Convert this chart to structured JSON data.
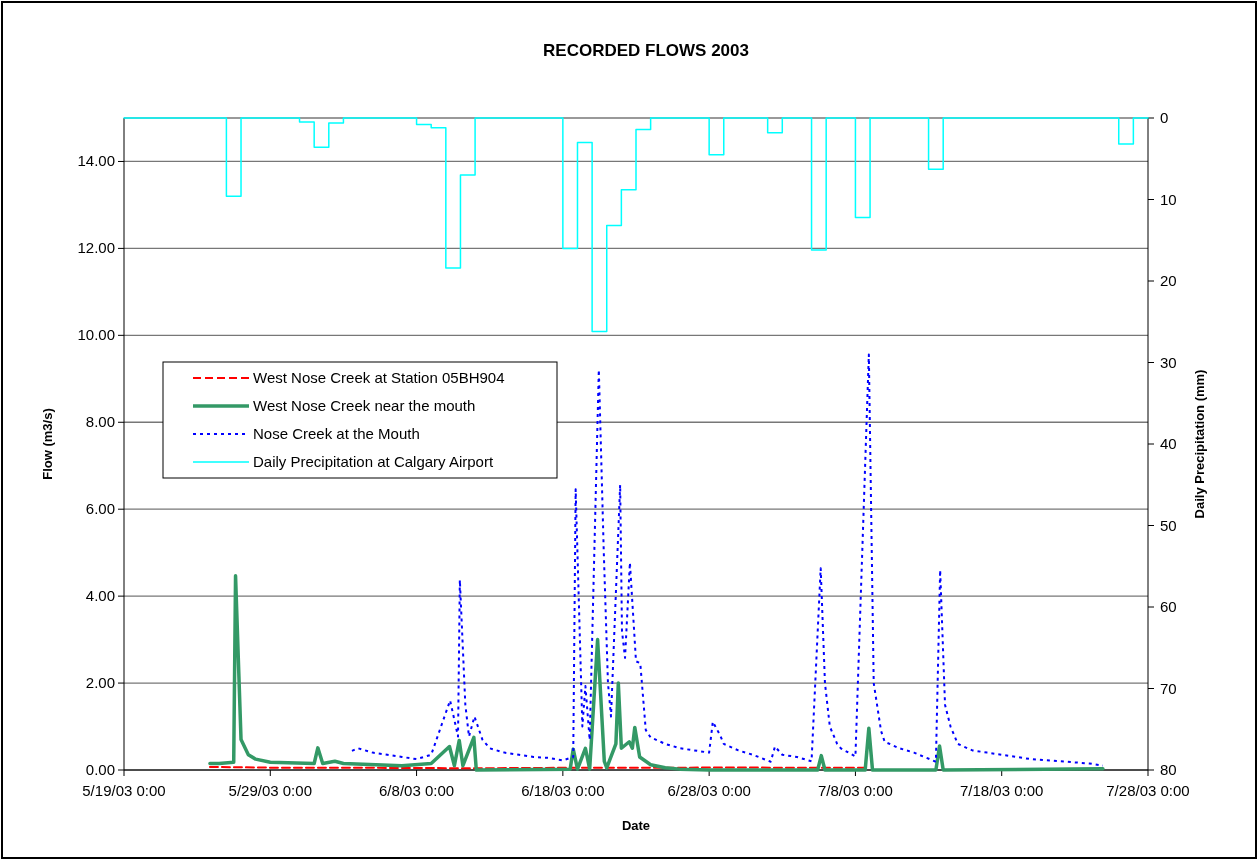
{
  "chart_data": {
    "type": "line",
    "title": "RECORDED FLOWS 2003",
    "xlabel": "Date",
    "ylabel": "Flow (m3/s)",
    "y2label": "Daily Precipitation (mm)",
    "xlim": [
      "2003-05-19",
      "2003-07-28"
    ],
    "xticks": [
      {
        "value": "2003-05-19",
        "label": "5/19/03 0:00"
      },
      {
        "value": "2003-05-29",
        "label": "5/29/03 0:00"
      },
      {
        "value": "2003-06-08",
        "label": "6/8/03 0:00"
      },
      {
        "value": "2003-06-18",
        "label": "6/18/03 0:00"
      },
      {
        "value": "2003-06-28",
        "label": "6/28/03 0:00"
      },
      {
        "value": "2003-07-08",
        "label": "7/8/03 0:00"
      },
      {
        "value": "2003-07-18",
        "label": "7/18/03 0:00"
      },
      {
        "value": "2003-07-28",
        "label": "7/28/03 0:00"
      }
    ],
    "ylim": [
      0,
      15
    ],
    "yticks": [
      {
        "value": 0,
        "label": "0.00"
      },
      {
        "value": 2,
        "label": "2.00"
      },
      {
        "value": 4,
        "label": "4.00"
      },
      {
        "value": 6,
        "label": "6.00"
      },
      {
        "value": 8,
        "label": "8.00"
      },
      {
        "value": 10,
        "label": "10.00"
      },
      {
        "value": 12,
        "label": "12.00"
      },
      {
        "value": 14,
        "label": "14.00"
      }
    ],
    "y2lim": [
      80,
      0
    ],
    "y2ticks": [
      0,
      10,
      20,
      30,
      40,
      50,
      60,
      70,
      80
    ],
    "grid": "y",
    "legend": "left",
    "marker": "none",
    "series": [
      {
        "name": "West Nose Creek at Station 05BH904",
        "color": "#ff0000",
        "line_style": "dashed",
        "x": [
          "2003-05-24T21:00",
          "2003-05-30",
          "2003-06-05",
          "2003-06-12",
          "2003-06-18",
          "2003-06-24",
          "2003-06-30",
          "2003-07-04",
          "2003-07-08T15:00"
        ],
        "values": [
          0.07,
          0.05,
          0.05,
          0.04,
          0.05,
          0.05,
          0.06,
          0.05,
          0.05
        ]
      },
      {
        "name": "West Nose Creek near the mouth",
        "color": "#339966",
        "line_style": "solid",
        "x": [
          "2003-05-24T21:00",
          "2003-05-25T12:00",
          "2003-05-26T12:00",
          "2003-05-26T15:00",
          "2003-05-27",
          "2003-05-27T12:00",
          "2003-05-28",
          "2003-05-29",
          "2003-06-01",
          "2003-06-01T06:00",
          "2003-06-01T14:00",
          "2003-06-02T10:00",
          "2003-06-03",
          "2003-06-07",
          "2003-06-09",
          "2003-06-10T06:00",
          "2003-06-10T14:00",
          "2003-06-10T22:00",
          "2003-06-11T04:00",
          "2003-06-11T22:00",
          "2003-06-12T02:00",
          "2003-06-18T12:00",
          "2003-06-18T17:00",
          "2003-06-19",
          "2003-06-19T13:00",
          "2003-06-19T20:00",
          "2003-06-20T09:00",
          "2003-06-20T20:00",
          "2003-06-21",
          "2003-06-21T15:00",
          "2003-06-21T19:00",
          "2003-06-22",
          "2003-06-22T13:00",
          "2003-06-22T18:00",
          "2003-06-22T22:00",
          "2003-06-23T06:00",
          "2003-06-24",
          "2003-06-25",
          "2003-06-26",
          "2003-06-28",
          "2003-07-05T10:00",
          "2003-07-05T16:00",
          "2003-07-05T22:00",
          "2003-07-08T16:00",
          "2003-07-08T22:00",
          "2003-07-09T04:00",
          "2003-07-13T12:00",
          "2003-07-13T18:00",
          "2003-07-14",
          "2003-07-24T22:00"
        ],
        "values": [
          0.15,
          0.15,
          0.18,
          4.47,
          0.7,
          0.35,
          0.25,
          0.18,
          0.15,
          0.51,
          0.15,
          0.2,
          0.15,
          0.1,
          0.15,
          0.54,
          0.1,
          0.68,
          0.1,
          0.75,
          0.0,
          0.02,
          0.48,
          0.02,
          0.5,
          0.02,
          3.0,
          0.2,
          0.05,
          0.6,
          2.0,
          0.5,
          0.65,
          0.5,
          0.98,
          0.3,
          0.12,
          0.05,
          0.02,
          0.0,
          0.0,
          0.33,
          0.0,
          0.0,
          0.96,
          0.0,
          0.0,
          0.55,
          0.0,
          0.03
        ]
      },
      {
        "name": "Nose Creek at the Mouth",
        "color": "#0000ff",
        "line_style": "dotted",
        "x": [
          "2003-06-03T14:00",
          "2003-06-04",
          "2003-06-05",
          "2003-06-06",
          "2003-06-07",
          "2003-06-08",
          "2003-06-09",
          "2003-06-10T07:00",
          "2003-06-10T20:00",
          "2003-06-10T23:00",
          "2003-06-11T08:00",
          "2003-06-11T14:00",
          "2003-06-11T23:00",
          "2003-06-12T12:00",
          "2003-06-13",
          "2003-06-14",
          "2003-06-15",
          "2003-06-16",
          "2003-06-17",
          "2003-06-18",
          "2003-06-18T17:00",
          "2003-06-18T21:00",
          "2003-06-19T08:00",
          "2003-06-19T13:00",
          "2003-06-19T20:00",
          "2003-06-20T11:00",
          "2003-06-20T19:00",
          "2003-06-21T02:00",
          "2003-06-21T07:00",
          "2003-06-21T22:00",
          "2003-06-22T01:00",
          "2003-06-22T06:00",
          "2003-06-22T14:00",
          "2003-06-23",
          "2003-06-23T07:00",
          "2003-06-23T16:00",
          "2003-06-24",
          "2003-06-25",
          "2003-06-26",
          "2003-06-27",
          "2003-06-28",
          "2003-06-28T06:00",
          "2003-06-28T18:00",
          "2003-06-29",
          "2003-06-30",
          "2003-07-01",
          "2003-07-02T05:00",
          "2003-07-02T12:00",
          "2003-07-03",
          "2003-07-04",
          "2003-07-05",
          "2003-07-05T15:00",
          "2003-07-05T22:00",
          "2003-07-06T06:00",
          "2003-07-06T18:00",
          "2003-07-07",
          "2003-07-08",
          "2003-07-08T22:00",
          "2003-07-09T06:00",
          "2003-07-09T18:00",
          "2003-07-10",
          "2003-07-11",
          "2003-07-12",
          "2003-07-13T12:00",
          "2003-07-13T19:00",
          "2003-07-14T03:00",
          "2003-07-14T12:00",
          "2003-07-15",
          "2003-07-16",
          "2003-07-17",
          "2003-07-18",
          "2003-07-19",
          "2003-07-20",
          "2003-07-22",
          "2003-07-24",
          "2003-07-24T22:00"
        ],
        "values": [
          0.44,
          0.5,
          0.4,
          0.35,
          0.3,
          0.25,
          0.35,
          1.6,
          0.77,
          4.37,
          1.5,
          0.77,
          1.23,
          0.7,
          0.5,
          0.4,
          0.35,
          0.3,
          0.28,
          0.22,
          0.3,
          6.46,
          1.0,
          1.93,
          0.69,
          9.21,
          5.07,
          2.0,
          1.23,
          6.56,
          3.2,
          2.58,
          4.77,
          2.5,
          2.46,
          0.92,
          0.75,
          0.6,
          0.5,
          0.45,
          0.4,
          1.11,
          0.8,
          0.6,
          0.45,
          0.35,
          0.19,
          0.54,
          0.35,
          0.3,
          0.2,
          4.64,
          2.0,
          1.0,
          0.6,
          0.5,
          0.31,
          9.56,
          2.0,
          0.9,
          0.65,
          0.5,
          0.4,
          0.19,
          4.6,
          1.5,
          1.0,
          0.6,
          0.45,
          0.4,
          0.35,
          0.3,
          0.25,
          0.2,
          0.15,
          0.1
        ]
      },
      {
        "name": "Daily Precipitation at Calgary Airport",
        "type": "step",
        "axis": "y2",
        "color": "#00ffff",
        "line_style": "solid",
        "x": [
          "2003-05-19",
          "2003-05-26",
          "2003-05-27",
          "2003-05-31",
          "2003-06-01",
          "2003-06-02",
          "2003-06-03",
          "2003-06-08",
          "2003-06-09",
          "2003-06-10",
          "2003-06-11",
          "2003-06-12",
          "2003-06-18",
          "2003-06-19",
          "2003-06-20",
          "2003-06-21",
          "2003-06-22",
          "2003-06-23",
          "2003-06-24",
          "2003-06-28",
          "2003-06-29",
          "2003-07-02",
          "2003-07-03",
          "2003-07-05",
          "2003-07-06",
          "2003-07-08",
          "2003-07-09",
          "2003-07-13",
          "2003-07-14",
          "2003-07-26",
          "2003-07-27",
          "2003-07-28"
        ],
        "values": [
          0,
          9.6,
          0,
          0.5,
          3.6,
          0.6,
          0,
          0.8,
          1.2,
          18.4,
          7.0,
          0,
          16.0,
          3.0,
          26.2,
          13.2,
          8.8,
          1.4,
          0,
          4.5,
          0,
          1.8,
          0,
          16.2,
          0,
          12.2,
          0,
          6.3,
          0,
          3.2,
          0,
          0
        ]
      }
    ]
  }
}
